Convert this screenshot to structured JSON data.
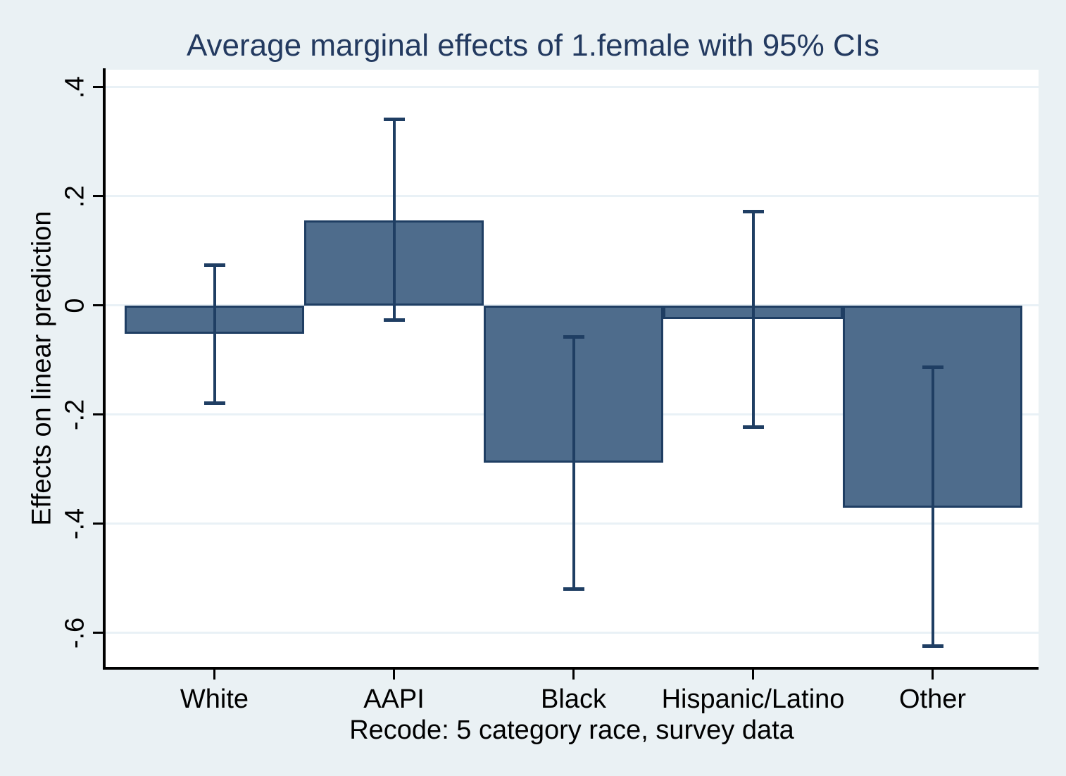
{
  "figure": {
    "kind": "stata-marginsplot"
  },
  "colors": {
    "background": "#eaf1f4",
    "plot_background": "#ffffff",
    "gridline": "#e9f1f6",
    "bar_fill": "#4e6c8c",
    "bar_border": "#1f3e63",
    "ci_line": "#1f3e63",
    "title_text": "#233a60",
    "axis_text": "#000000",
    "axis_line": "#000000"
  },
  "chart_data": {
    "type": "bar",
    "title": "Average marginal effects of 1.female with 95% CIs",
    "xlabel": "Recode: 5 category race, survey data",
    "ylabel": "Effects on linear prediction",
    "categories": [
      "White",
      "AAPI",
      "Black",
      "Hispanic/Latino",
      "Other"
    ],
    "series": [
      {
        "name": "Average marginal effect of 1.female",
        "values": [
          -0.052,
          0.156,
          -0.288,
          -0.025,
          -0.37
        ],
        "ci_low": [
          -0.179,
          -0.027,
          -0.52,
          -0.223,
          -0.625
        ],
        "ci_high": [
          0.074,
          0.342,
          -0.057,
          0.173,
          -0.112
        ]
      }
    ],
    "ylim": [
      -0.662,
      0.432
    ],
    "yticks": [
      {
        "value": 0.4,
        "label": ".4"
      },
      {
        "value": 0.2,
        "label": ".2"
      },
      {
        "value": 0.0,
        "label": "0"
      },
      {
        "value": -0.2,
        "label": "-.2"
      },
      {
        "value": -0.4,
        "label": "-.4"
      },
      {
        "value": -0.6,
        "label": "-.6"
      }
    ],
    "grid": true,
    "legend": false
  }
}
